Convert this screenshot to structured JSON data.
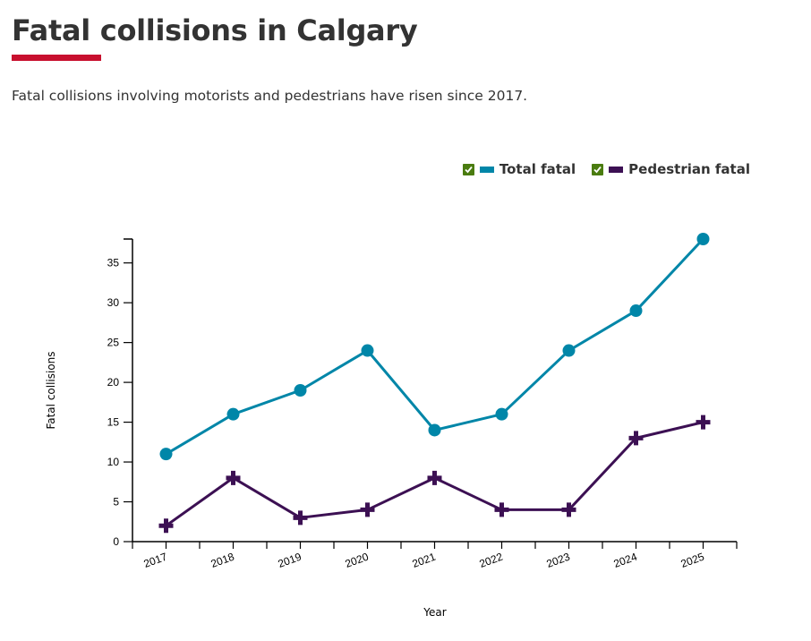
{
  "header": {
    "title": "Fatal collisions in Calgary",
    "subtitle": "Fatal collisions involving motorists and pedestrians have risen since 2017.",
    "accent_color": "#c8102e"
  },
  "legend": {
    "placement": "top-right",
    "items": [
      {
        "label": "Total fatal",
        "color": "#0086a8",
        "checked": true,
        "check_color": "#4a7c10"
      },
      {
        "label": "Pedestrian fatal",
        "color": "#3c1053",
        "checked": true,
        "check_color": "#4a7c10"
      }
    ]
  },
  "chart_data": {
    "type": "line",
    "title": "",
    "xlabel": "Year",
    "ylabel": "Fatal collisions",
    "categories": [
      "2017",
      "2018",
      "2019",
      "2020",
      "2021",
      "2022",
      "2023",
      "2024",
      "2025"
    ],
    "ylim": [
      0,
      38
    ],
    "yticks": [
      0,
      5,
      10,
      15,
      20,
      25,
      30,
      35
    ],
    "grid": false,
    "series": [
      {
        "name": "Total fatal",
        "color": "#0086a8",
        "marker": "circle",
        "values": [
          11,
          16,
          19,
          24,
          14,
          16,
          24,
          29,
          38
        ]
      },
      {
        "name": "Pedestrian fatal",
        "color": "#3c1053",
        "marker": "cross",
        "values": [
          2,
          8,
          3,
          4,
          8,
          4,
          4,
          13,
          15
        ]
      }
    ]
  }
}
